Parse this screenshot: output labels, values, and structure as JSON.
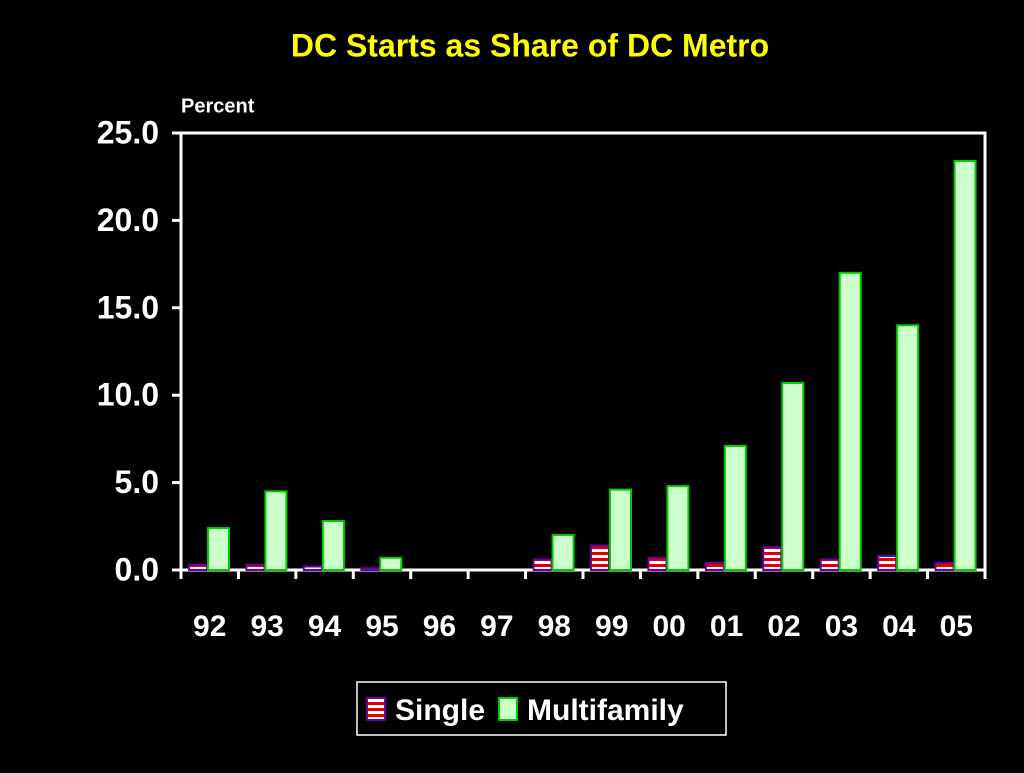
{
  "chart_data": {
    "type": "bar",
    "title": "DC Starts as Share of DC Metro",
    "y_label": "Percent",
    "categories": [
      "92",
      "93",
      "94",
      "95",
      "96",
      "97",
      "98",
      "99",
      "00",
      "01",
      "02",
      "03",
      "04",
      "05"
    ],
    "series": [
      {
        "name": "Single",
        "color": "#e00000",
        "values": [
          0.3,
          0.3,
          0.2,
          0.1,
          0,
          0,
          0.6,
          1.4,
          0.7,
          0.4,
          1.3,
          0.6,
          0.8,
          0.4
        ]
      },
      {
        "name": "Multifamily",
        "color": "#ccffcc",
        "values": [
          2.4,
          4.5,
          2.8,
          0.7,
          0,
          0,
          2.0,
          4.6,
          4.8,
          7.1,
          10.7,
          17.0,
          14.0,
          23.4
        ]
      }
    ],
    "ylim": [
      0,
      25
    ],
    "yticks": [
      {
        "value": 0,
        "label": "0.0"
      },
      {
        "value": 5,
        "label": "5.0"
      },
      {
        "value": 10,
        "label": "10.0"
      },
      {
        "value": 15,
        "label": "15.0"
      },
      {
        "value": 20,
        "label": "20.0"
      },
      {
        "value": 25,
        "label": "25.0"
      }
    ],
    "legend": "bottom"
  }
}
